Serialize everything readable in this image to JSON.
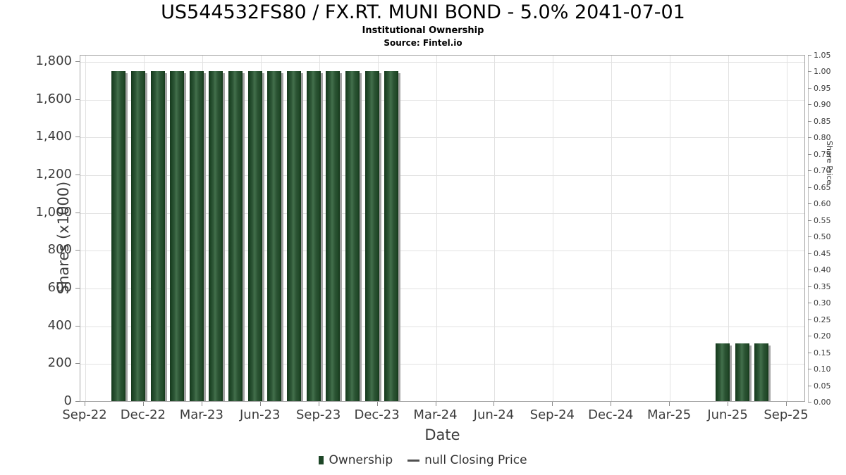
{
  "header": {
    "title": "US544532FS80 / FX.RT. MUNI BOND - 5.0% 2041-07-01",
    "subtitle": "Institutional Ownership",
    "source": "Source: Fintel.io"
  },
  "chart_data": {
    "type": "bar",
    "title": "US544532FS80 / FX.RT. MUNI BOND - 5.0% 2041-07-01",
    "subtitle": "Institutional Ownership",
    "source": "Source: Fintel.io",
    "xlabel": "Date",
    "ylabel": "Shares (x1000)",
    "ylabel_right": "Share Price",
    "grid": true,
    "legend_position": "bottom",
    "x_tick_labels": [
      "Sep-22",
      "Dec-22",
      "Mar-23",
      "Jun-23",
      "Sep-23",
      "Dec-23",
      "Mar-24",
      "Jun-24",
      "Sep-24",
      "Dec-24",
      "Mar-25",
      "Jun-25",
      "Sep-25"
    ],
    "x_months_after_sep22_max": 36,
    "y_left_axis": {
      "min": 0,
      "max": 1800,
      "step": 200
    },
    "y_right_axis": {
      "min": 0.0,
      "max": 1.05,
      "step": 0.05
    },
    "series": [
      {
        "name": "Ownership",
        "type": "bar",
        "points": [
          {
            "date": "Nov-22",
            "m": 2,
            "value": 1750
          },
          {
            "date": "Dec-22",
            "m": 3,
            "value": 1750
          },
          {
            "date": "Jan-23",
            "m": 4,
            "value": 1750
          },
          {
            "date": "Feb-23",
            "m": 5,
            "value": 1750
          },
          {
            "date": "Mar-23",
            "m": 6,
            "value": 1750
          },
          {
            "date": "Apr-23",
            "m": 7,
            "value": 1750
          },
          {
            "date": "May-23",
            "m": 8,
            "value": 1750
          },
          {
            "date": "Jun-23",
            "m": 9,
            "value": 1750
          },
          {
            "date": "Jul-23",
            "m": 10,
            "value": 1750
          },
          {
            "date": "Aug-23",
            "m": 11,
            "value": 1750
          },
          {
            "date": "Sep-23",
            "m": 12,
            "value": 1750
          },
          {
            "date": "Oct-23",
            "m": 13,
            "value": 1750
          },
          {
            "date": "Nov-23",
            "m": 14,
            "value": 1750
          },
          {
            "date": "Dec-23",
            "m": 15,
            "value": 1750
          },
          {
            "date": "Jan-24",
            "m": 16,
            "value": 1750
          },
          {
            "date": "Jun-25",
            "m": 33,
            "value": 310
          },
          {
            "date": "Jul-25",
            "m": 34,
            "value": 310
          },
          {
            "date": "Aug-25",
            "m": 35,
            "value": 310
          }
        ]
      },
      {
        "name": "null Closing Price",
        "type": "line",
        "points": []
      }
    ]
  },
  "legend": {
    "items": [
      {
        "label": "Ownership",
        "marker": "bar-swatch",
        "color": "#1d4627"
      },
      {
        "label": "null Closing Price",
        "marker": "dash",
        "color": "#4f4f4f"
      }
    ]
  },
  "colors": {
    "bar_base": "#2a5232",
    "bar_dark": "#16371d",
    "bar_light": "#43704c",
    "bar_shadow": "#a3a3a3",
    "grid": "#e2e2e2",
    "plot_border": "#a6a6a6",
    "text": "#3c3c3c"
  }
}
